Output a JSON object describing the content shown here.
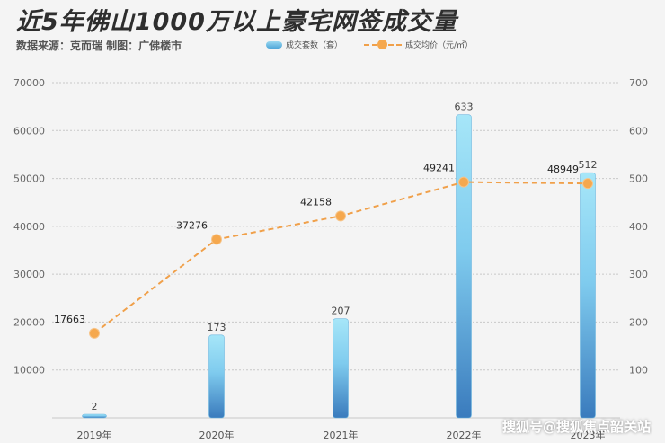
{
  "title": "近5年佛山1000万以上豪宅网签成交量",
  "subtitle": "数据来源：克而瑞  制图：广佛楼市",
  "legend": {
    "bar_label": "成交套数（套）",
    "line_label": "成交均价（元/㎡）"
  },
  "watermark": "搜狐号@搜狐焦点韶关站",
  "colors": {
    "bar_top": "#a6e6f8",
    "bar_bottom": "#3a7bbd",
    "line": "#f0a04a",
    "grid": "#c8c8c8"
  },
  "chart_data": {
    "type": "bar",
    "categories": [
      "2019年",
      "2020年",
      "2021年",
      "2022年",
      "2023年"
    ],
    "series": [
      {
        "name": "成交套数（套）",
        "type": "bar",
        "axis": "right",
        "values": [
          2,
          173,
          207,
          633,
          512
        ]
      },
      {
        "name": "成交均价（元/㎡）",
        "type": "line",
        "axis": "left",
        "values": [
          17663,
          37276,
          42158,
          49241,
          48949
        ]
      }
    ],
    "y_left": {
      "min": 0,
      "max": 70000,
      "ticks": [
        10000,
        20000,
        30000,
        40000,
        50000,
        60000,
        70000
      ]
    },
    "y_right": {
      "min": 0,
      "max": 700,
      "ticks": [
        100,
        200,
        300,
        400,
        500,
        600,
        700
      ]
    },
    "grid": true,
    "legend_position": "top"
  }
}
